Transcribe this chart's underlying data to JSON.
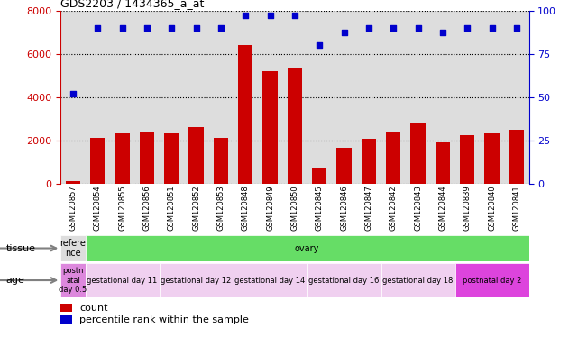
{
  "title": "GDS2203 / 1434365_a_at",
  "samples": [
    "GSM120857",
    "GSM120854",
    "GSM120855",
    "GSM120856",
    "GSM120851",
    "GSM120852",
    "GSM120853",
    "GSM120848",
    "GSM120849",
    "GSM120850",
    "GSM120845",
    "GSM120846",
    "GSM120847",
    "GSM120842",
    "GSM120843",
    "GSM120844",
    "GSM120839",
    "GSM120840",
    "GSM120841"
  ],
  "counts": [
    120,
    2100,
    2300,
    2350,
    2300,
    2600,
    2100,
    6400,
    5200,
    5350,
    700,
    1650,
    2050,
    2380,
    2800,
    1900,
    2250,
    2300,
    2500
  ],
  "percentiles": [
    52,
    90,
    90,
    90,
    90,
    90,
    90,
    97,
    97,
    97,
    80,
    87,
    90,
    90,
    90,
    87,
    90,
    90,
    90
  ],
  "ylim_left": [
    0,
    8000
  ],
  "ylim_right": [
    0,
    100
  ],
  "yticks_left": [
    0,
    2000,
    4000,
    6000,
    8000
  ],
  "yticks_right": [
    0,
    25,
    50,
    75,
    100
  ],
  "bar_color": "#cc0000",
  "dot_color": "#0000cc",
  "tissue_label": "tissue",
  "age_label": "age",
  "tissue_row": [
    {
      "label": "refere\nnce",
      "color": "#dddddd",
      "start": 0,
      "end": 1
    },
    {
      "label": "ovary",
      "color": "#66dd66",
      "start": 1,
      "end": 19
    }
  ],
  "age_row": [
    {
      "label": "postn\natal\nday 0.5",
      "color": "#dd88dd",
      "start": 0,
      "end": 1
    },
    {
      "label": "gestational day 11",
      "color": "#f0d0f0",
      "start": 1,
      "end": 4
    },
    {
      "label": "gestational day 12",
      "color": "#f0d0f0",
      "start": 4,
      "end": 7
    },
    {
      "label": "gestational day 14",
      "color": "#f0d0f0",
      "start": 7,
      "end": 10
    },
    {
      "label": "gestational day 16",
      "color": "#f0d0f0",
      "start": 10,
      "end": 13
    },
    {
      "label": "gestational day 18",
      "color": "#f0d0f0",
      "start": 13,
      "end": 16
    },
    {
      "label": "postnatal day 2",
      "color": "#dd44dd",
      "start": 16,
      "end": 19
    }
  ],
  "bg_color": "#dddddd",
  "left_axis_color": "#cc0000",
  "right_axis_color": "#0000cc"
}
